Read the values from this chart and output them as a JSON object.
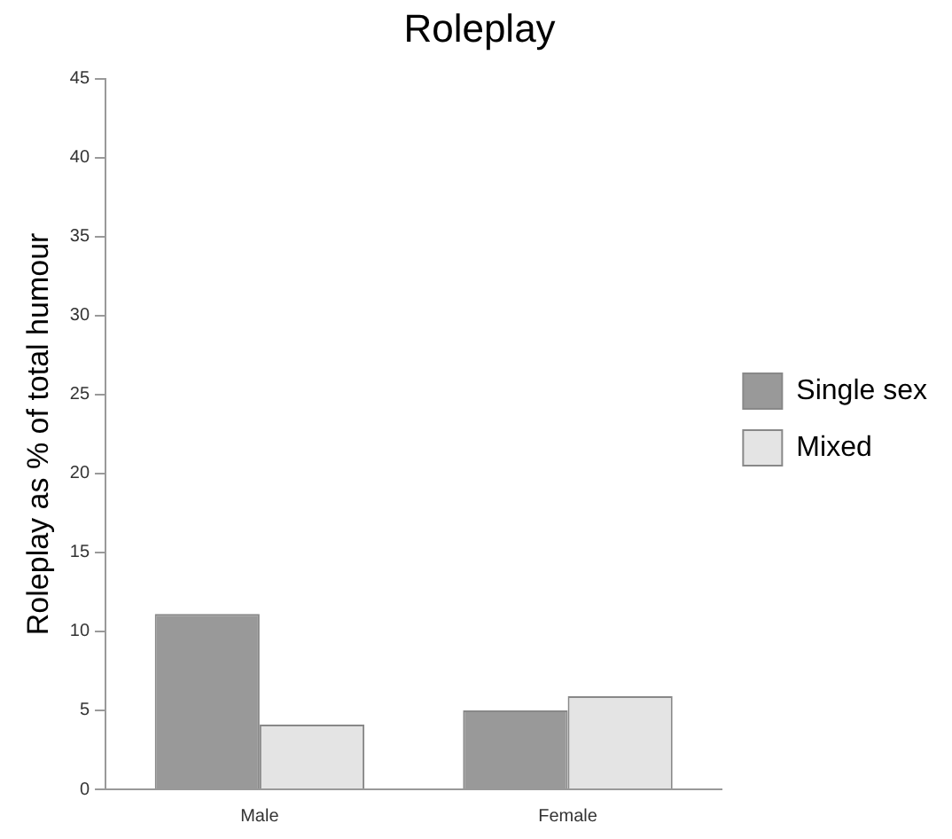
{
  "chart_data": {
    "type": "bar",
    "title": "Roleplay",
    "ylabel": "Roleplay as % of total humour",
    "categories": [
      "Male",
      "Female"
    ],
    "series": [
      {
        "name": "Single sex",
        "color": "#999999",
        "values": [
          11.1,
          5
        ]
      },
      {
        "name": "Mixed",
        "color": "#e4e4e4",
        "values": [
          4.1,
          5.9
        ]
      }
    ],
    "ylim": [
      0,
      45
    ],
    "yticks": [
      0,
      5,
      10,
      15,
      20,
      25,
      30,
      35,
      40,
      45
    ],
    "grid": false,
    "legend": "right"
  }
}
